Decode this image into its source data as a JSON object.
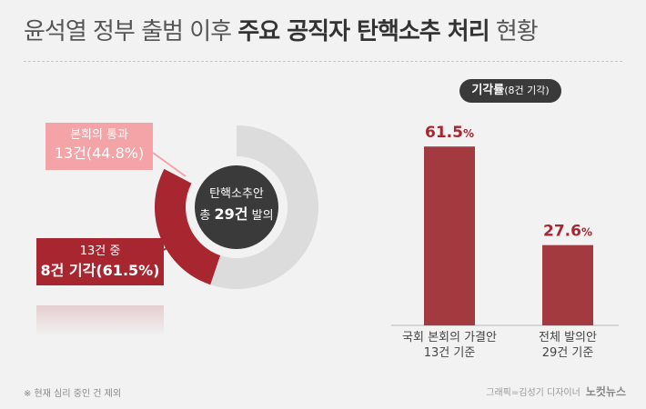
{
  "title": {
    "part1": "윤석열 정부 출범 이후 ",
    "part2": "주요 공직자 탄핵소추 처리",
    "part3": " 현황"
  },
  "colors": {
    "pass": "#f4a3a7",
    "reject": "#a8262f",
    "remaining": "#dcdcdc",
    "center": "#3a3a3a",
    "bar": "#a23a40"
  },
  "chart_data": [
    {
      "type": "pie",
      "center_label": {
        "line1": "탄핵소추안",
        "prefix": "총 ",
        "count": "29건",
        "suffix": " 발의"
      },
      "total": 29,
      "slices": [
        {
          "name": "본회의 통과",
          "value": 13,
          "label_line1": "본회의 통과",
          "label_line2": "13건(44.8%)"
        },
        {
          "name": "기각",
          "value": 8,
          "label_line1": "13건 중",
          "label_line2": "8건 기각(61.5%)"
        }
      ]
    },
    {
      "type": "bar",
      "title_main": "기각률",
      "title_sub": "(8건 기각)",
      "ylim": [
        0,
        100
      ],
      "categories": [
        {
          "line1": "국회 본회의 가결안",
          "line2": "13건 기준"
        },
        {
          "line1": "전체 발의안",
          "line2": "29건 기준"
        }
      ],
      "values": [
        61.5,
        27.6
      ],
      "value_labels": [
        {
          "num": "61.5",
          "unit": "%"
        },
        {
          "num": "27.6",
          "unit": "%"
        }
      ]
    }
  ],
  "footnote": "※ 현재 심리 중인 건 제외",
  "credit": {
    "text": "그래픽=김성기 디자이너",
    "logo": "노컷뉴스"
  }
}
